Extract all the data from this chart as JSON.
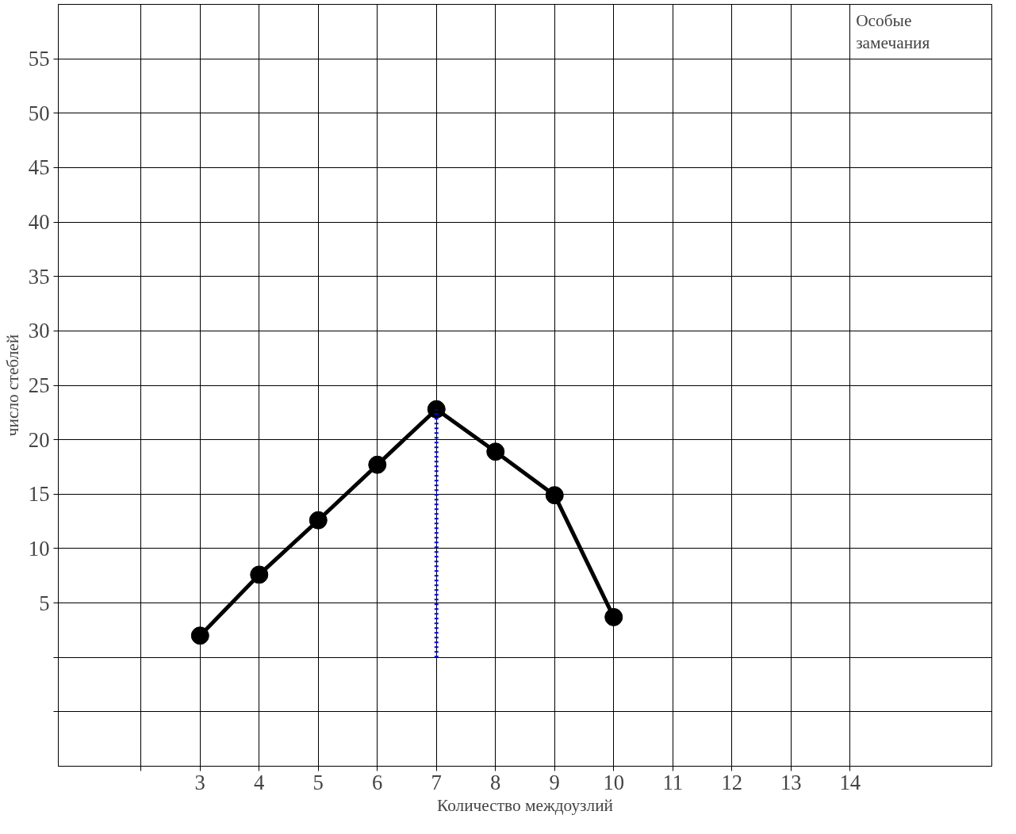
{
  "chart_data": {
    "type": "line",
    "xlabel": "Количество междоузлий",
    "ylabel": "число стеблей",
    "annotations": [
      "Особые замечания"
    ],
    "x": [
      3,
      4,
      5,
      6,
      7,
      8,
      9,
      10
    ],
    "series": [
      {
        "color": "#000000",
        "values": [
          2,
          7.6,
          12.6,
          17.7,
          22.8,
          18.9,
          14.9,
          3.7
        ]
      },
      {
        "type": "line",
        "x": [
          7,
          7
        ],
        "values": [
          0,
          22.8
        ],
        "color": "#0000ff",
        "line_style": "dotted",
        "marker": "none"
      }
    ],
    "xlim": [
      0.6,
      16.4
    ],
    "ylim": [
      -10,
      60
    ],
    "xticks": [
      {
        "value": 2,
        "label": null
      },
      3,
      4,
      5,
      6,
      7,
      8,
      9,
      10,
      11,
      12,
      13,
      14
    ],
    "yticks": [
      {
        "value": -5,
        "label": null
      },
      {
        "value": 0,
        "label": null
      },
      5,
      10,
      15,
      20,
      25,
      30,
      35,
      40,
      45,
      50,
      55
    ],
    "grid": true,
    "marker": "circle",
    "line_style": "solid"
  }
}
